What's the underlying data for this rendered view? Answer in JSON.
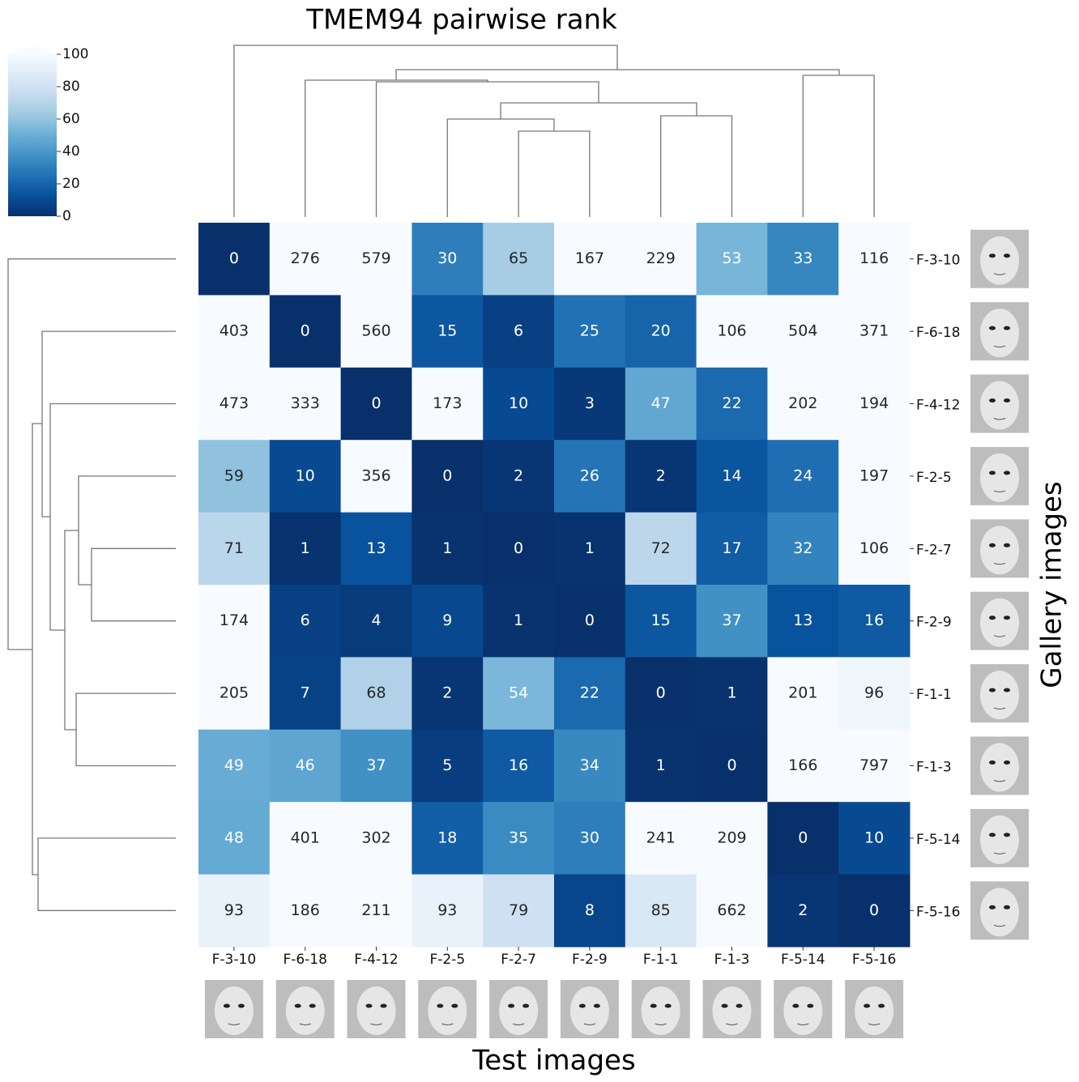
{
  "chart_data": {
    "type": "heatmap",
    "title": "TMEM94 pairwise rank",
    "xlabel": "Test images",
    "ylabel": "Gallery images",
    "columns": [
      "F-3-10",
      "F-6-18",
      "F-4-12",
      "F-2-5",
      "F-2-7",
      "F-2-9",
      "F-1-1",
      "F-1-3",
      "F-5-14",
      "F-5-16"
    ],
    "rows": [
      "F-3-10",
      "F-6-18",
      "F-4-12",
      "F-2-5",
      "F-2-7",
      "F-2-9",
      "F-1-1",
      "F-1-3",
      "F-5-14",
      "F-5-16"
    ],
    "values": [
      [
        0,
        276,
        579,
        30,
        65,
        167,
        229,
        53,
        33,
        116
      ],
      [
        403,
        0,
        560,
        15,
        6,
        25,
        20,
        106,
        504,
        371
      ],
      [
        473,
        333,
        0,
        173,
        10,
        3,
        47,
        22,
        202,
        194
      ],
      [
        59,
        10,
        356,
        0,
        2,
        26,
        2,
        14,
        24,
        197
      ],
      [
        71,
        1,
        13,
        1,
        0,
        1,
        72,
        17,
        32,
        106
      ],
      [
        174,
        6,
        4,
        9,
        1,
        0,
        15,
        37,
        13,
        16
      ],
      [
        205,
        7,
        68,
        2,
        54,
        22,
        0,
        1,
        201,
        96
      ],
      [
        49,
        46,
        37,
        5,
        16,
        34,
        1,
        0,
        166,
        797
      ],
      [
        48,
        401,
        302,
        18,
        35,
        30,
        241,
        209,
        0,
        10
      ],
      [
        93,
        186,
        211,
        93,
        79,
        8,
        85,
        662,
        2,
        0
      ]
    ],
    "colormap": "Blues_r",
    "clim": [
      0,
      100
    ],
    "cticks": [
      0,
      20,
      40,
      60,
      80,
      100
    ]
  }
}
